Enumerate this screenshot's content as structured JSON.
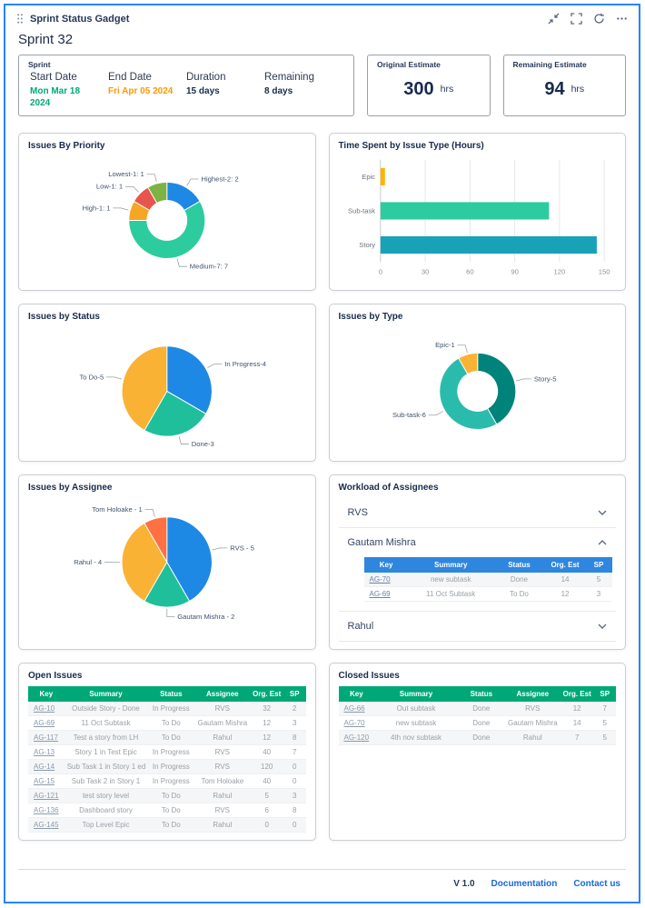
{
  "colors": {
    "accent_blue": "#2684ff",
    "table_header_green": "#00a878",
    "mini_table_header_blue": "#2e86de",
    "link_blue": "#1769d6"
  },
  "window": {
    "title": "Sprint Status Gadget"
  },
  "header_icons": [
    {
      "name": "drag-handle-icon"
    },
    {
      "name": "collapse-icon"
    },
    {
      "name": "fullscreen-icon"
    },
    {
      "name": "refresh-icon"
    },
    {
      "name": "more-options-icon"
    }
  ],
  "sprint": {
    "heading": "Sprint 32",
    "panel_label": "Sprint",
    "fields": [
      {
        "label": "Start Date",
        "value": "Mon Mar 18 2024",
        "color": "#00a878"
      },
      {
        "label": "End Date",
        "value": "Fri Apr 05 2024",
        "color": "#ff9800"
      },
      {
        "label": "Duration",
        "value": "15 days",
        "color": "#172b4d"
      },
      {
        "label": "Remaining",
        "value": "8 days",
        "color": "#172b4d"
      }
    ]
  },
  "estimates": [
    {
      "label": "Original Estimate",
      "value": "300",
      "unit": "hrs"
    },
    {
      "label": "Remaining Estimate",
      "value": "94",
      "unit": "hrs"
    }
  ],
  "chart_data": [
    {
      "id": "issues_by_priority",
      "type": "donut",
      "title": "Issues By Priority",
      "slices": [
        {
          "label": "Highest-2: 2",
          "value": 2,
          "color": "#1e88e5"
        },
        {
          "label": "Medium-7: 7",
          "value": 7,
          "color": "#2dcc9e"
        },
        {
          "label": "High-1: 1",
          "value": 1,
          "color": "#f5a623"
        },
        {
          "label": "Low-1: 1",
          "value": 1,
          "color": "#e8554d"
        },
        {
          "label": "Lowest-1: 1",
          "value": 1,
          "color": "#7cb342"
        }
      ]
    },
    {
      "id": "time_spent_by_issue_type",
      "type": "bar",
      "title": "Time Spent by Issue Type (Hours)",
      "categories": [
        "Epic",
        "Sub-task",
        "Story"
      ],
      "values": [
        3,
        113,
        145
      ],
      "colors": [
        "#ffb300",
        "#2dcc9e",
        "#17a2b8"
      ],
      "xlim": [
        0,
        150
      ],
      "xticks": [
        0,
        30,
        60,
        90,
        120,
        150
      ]
    },
    {
      "id": "issues_by_status",
      "type": "pie",
      "title": "Issues by Status",
      "slices": [
        {
          "label": "In Progress-4",
          "value": 4,
          "color": "#1e88e5"
        },
        {
          "label": "Done-3",
          "value": 3,
          "color": "#1fbf9c"
        },
        {
          "label": "To Do-5",
          "value": 5,
          "color": "#f9b233"
        }
      ]
    },
    {
      "id": "issues_by_type",
      "type": "donut",
      "title": "Issues by Type",
      "slices": [
        {
          "label": "Story-5",
          "value": 5,
          "color": "#00837a"
        },
        {
          "label": "Sub-task-6",
          "value": 6,
          "color": "#2bbbad"
        },
        {
          "label": "Epic-1",
          "value": 1,
          "color": "#f9b233"
        }
      ]
    },
    {
      "id": "issues_by_assignee",
      "type": "pie",
      "title": "Issues by Assignee",
      "slices": [
        {
          "label": "RVS - 5",
          "value": 5,
          "color": "#1e88e5"
        },
        {
          "label": "Gautam Mishra - 2",
          "value": 2,
          "color": "#1fbf9c"
        },
        {
          "label": "Rahul - 4",
          "value": 4,
          "color": "#f9b233"
        },
        {
          "label": "Tom Holoake - 1",
          "value": 1,
          "color": "#ff7043"
        }
      ]
    }
  ],
  "workload": {
    "title": "Workload of Assignees",
    "sections": [
      {
        "name": "RVS",
        "expanded": false
      },
      {
        "name": "Gautam Mishra",
        "expanded": true,
        "table": {
          "columns": [
            "Key",
            "Summary",
            "Status",
            "Org. Est",
            "SP"
          ],
          "rows": [
            [
              "AG-70",
              "new subtask",
              "Done",
              "14",
              "5"
            ],
            [
              "AG-69",
              "11 Oct Subtask",
              "To Do",
              "12",
              "3"
            ]
          ]
        }
      },
      {
        "name": "Rahul",
        "expanded": false
      }
    ]
  },
  "open_issues": {
    "title": "Open Issues",
    "columns": [
      "Key",
      "Summary",
      "Status",
      "Assignee",
      "Org. Est",
      "SP"
    ],
    "rows": [
      [
        "AG-10",
        "Outside Story - Done",
        "In Progress",
        "RVS",
        "32",
        "2"
      ],
      [
        "AG-69",
        "11 Oct Subtask",
        "To Do",
        "Gautam Mishra",
        "12",
        "3"
      ],
      [
        "AG-117",
        "Test a story from LH",
        "To Do",
        "Rahul",
        "12",
        "8"
      ],
      [
        "AG-13",
        "Story 1 in Test Epic",
        "In Progress",
        "RVS",
        "40",
        "7"
      ],
      [
        "AG-14",
        "Sub Task 1 in Story 1 ed",
        "In Progress",
        "RVS",
        "120",
        "0"
      ],
      [
        "AG-15",
        "Sub Task 2 in Story 1",
        "In Progress",
        "Tom Holoake",
        "40",
        "0"
      ],
      [
        "AG-121",
        "test story level",
        "To Do",
        "Rahul",
        "5",
        "3"
      ],
      [
        "AG-136",
        "Dashboard story",
        "To Do",
        "RVS",
        "6",
        "8"
      ],
      [
        "AG-145",
        "Top Level Epic",
        "To Do",
        "Rahul",
        "0",
        "0"
      ]
    ]
  },
  "closed_issues": {
    "title": "Closed Issues",
    "columns": [
      "Key",
      "Summary",
      "Status",
      "Assignee",
      "Org. Est",
      "SP"
    ],
    "rows": [
      [
        "AG-66",
        "Out subtask",
        "Done",
        "RVS",
        "12",
        "7"
      ],
      [
        "AG-70",
        "new subtask",
        "Done",
        "Gautam Mishra",
        "14",
        "5"
      ],
      [
        "AG-120",
        "4th nov subtask",
        "Done",
        "Rahul",
        "7",
        "5"
      ]
    ]
  },
  "footer": {
    "version": "V 1.0",
    "links": [
      {
        "label": "Documentation"
      },
      {
        "label": "Contact us"
      }
    ]
  }
}
